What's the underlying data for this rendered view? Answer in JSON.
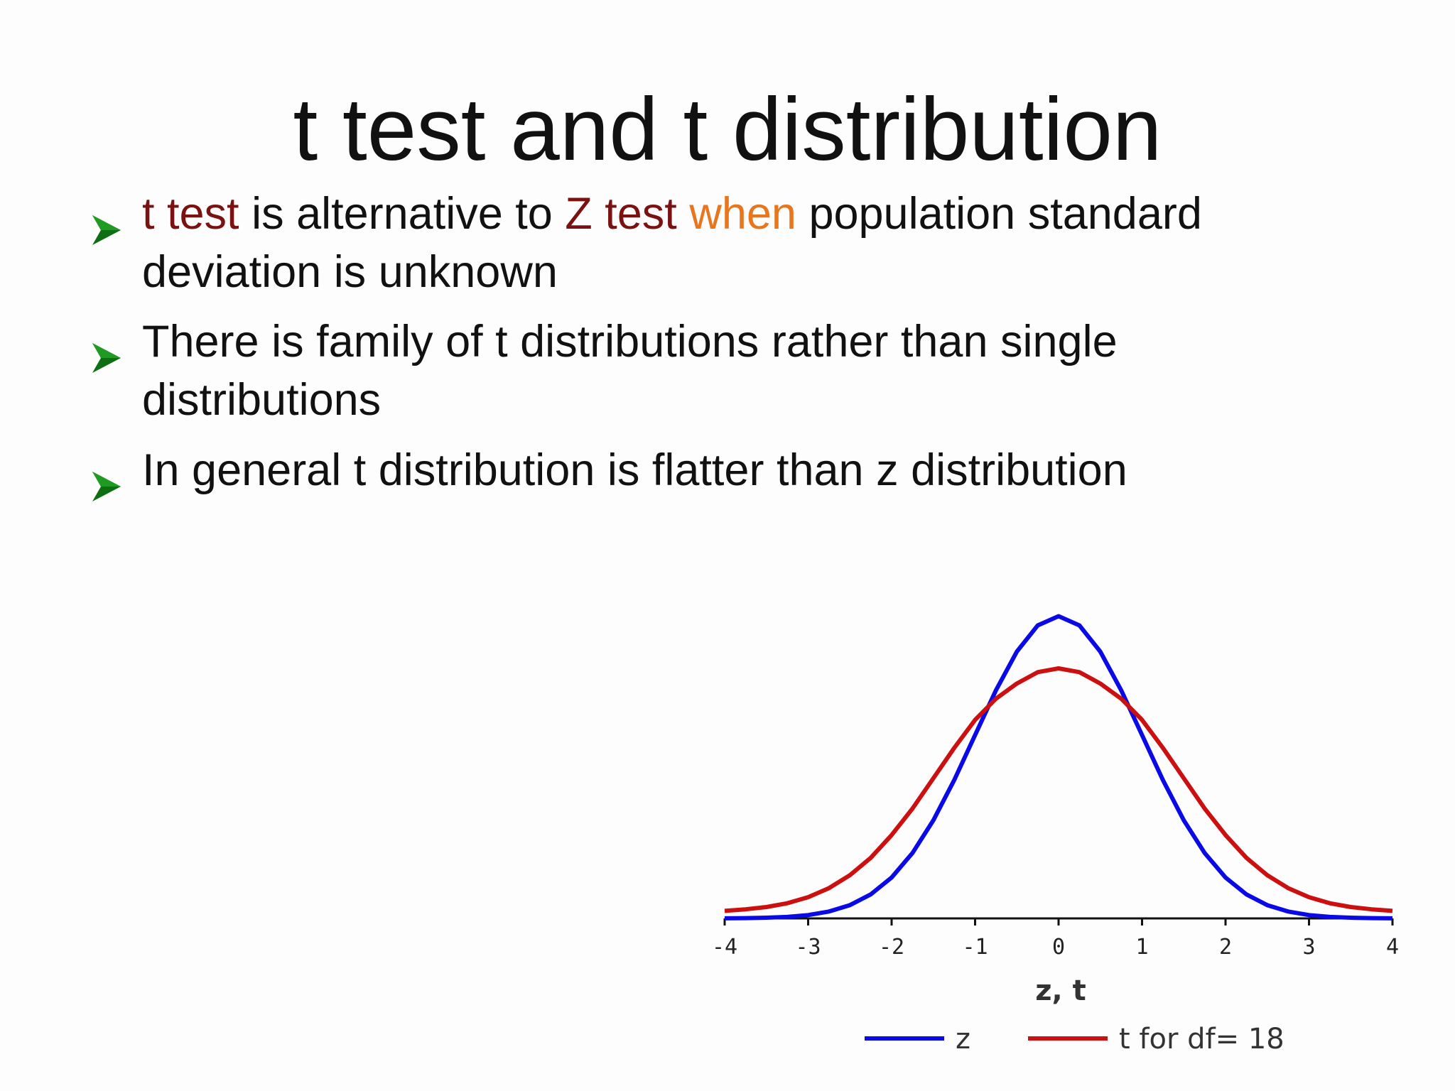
{
  "title": "t test and t distribution",
  "bullets": [
    {
      "segments": [
        {
          "text": "t test",
          "color": "#7a1212"
        },
        {
          "text": " is alternative to ",
          "color": "#111111"
        },
        {
          "text": "Z test",
          "color": "#7a1212"
        },
        {
          "text": " when",
          "color": "#e8761e"
        },
        {
          "text": " population standard deviation is unknown",
          "color": "#111111"
        }
      ]
    },
    {
      "segments": [
        {
          "text": "There is family of t distributions rather than single distributions",
          "color": "#111111"
        }
      ]
    },
    {
      "segments": [
        {
          "text": "In general t distribution is flatter than z distribution",
          "color": "#111111"
        }
      ]
    }
  ],
  "chart_data": {
    "type": "line",
    "x_label": "z, t",
    "x": [
      -4,
      -3.75,
      -3.5,
      -3.25,
      -3,
      -2.75,
      -2.5,
      -2.25,
      -2,
      -1.75,
      -1.5,
      -1.25,
      -1,
      -0.75,
      -0.5,
      -0.25,
      0,
      0.25,
      0.5,
      0.75,
      1,
      1.25,
      1.5,
      1.75,
      2,
      2.25,
      2.5,
      2.75,
      3,
      3.25,
      3.5,
      3.75,
      4
    ],
    "series": [
      {
        "name": "z",
        "color": "#0a0ae6",
        "values": [
          0.0001,
          0.0004,
          0.0009,
          0.002,
          0.0044,
          0.0091,
          0.0175,
          0.0317,
          0.054,
          0.0863,
          0.1295,
          0.1826,
          0.242,
          0.3011,
          0.3521,
          0.3867,
          0.3989,
          0.3867,
          0.3521,
          0.3011,
          0.242,
          0.1826,
          0.1295,
          0.0863,
          0.054,
          0.0317,
          0.0175,
          0.0091,
          0.0044,
          0.002,
          0.0009,
          0.0004,
          0.0001
        ]
      },
      {
        "name": "t for df= 18",
        "color": "#cc1010",
        "values": [
          0.01,
          0.012,
          0.015,
          0.02,
          0.028,
          0.04,
          0.057,
          0.08,
          0.11,
          0.145,
          0.185,
          0.225,
          0.262,
          0.29,
          0.31,
          0.325,
          0.33,
          0.325,
          0.31,
          0.29,
          0.262,
          0.225,
          0.185,
          0.145,
          0.11,
          0.08,
          0.057,
          0.04,
          0.028,
          0.02,
          0.015,
          0.012,
          0.01
        ]
      }
    ],
    "xlim": [
      -4,
      4
    ],
    "xticks": [
      -4,
      -3,
      -2,
      -1,
      0,
      1,
      2,
      3,
      4
    ],
    "ylim": [
      0,
      0.42
    ]
  }
}
